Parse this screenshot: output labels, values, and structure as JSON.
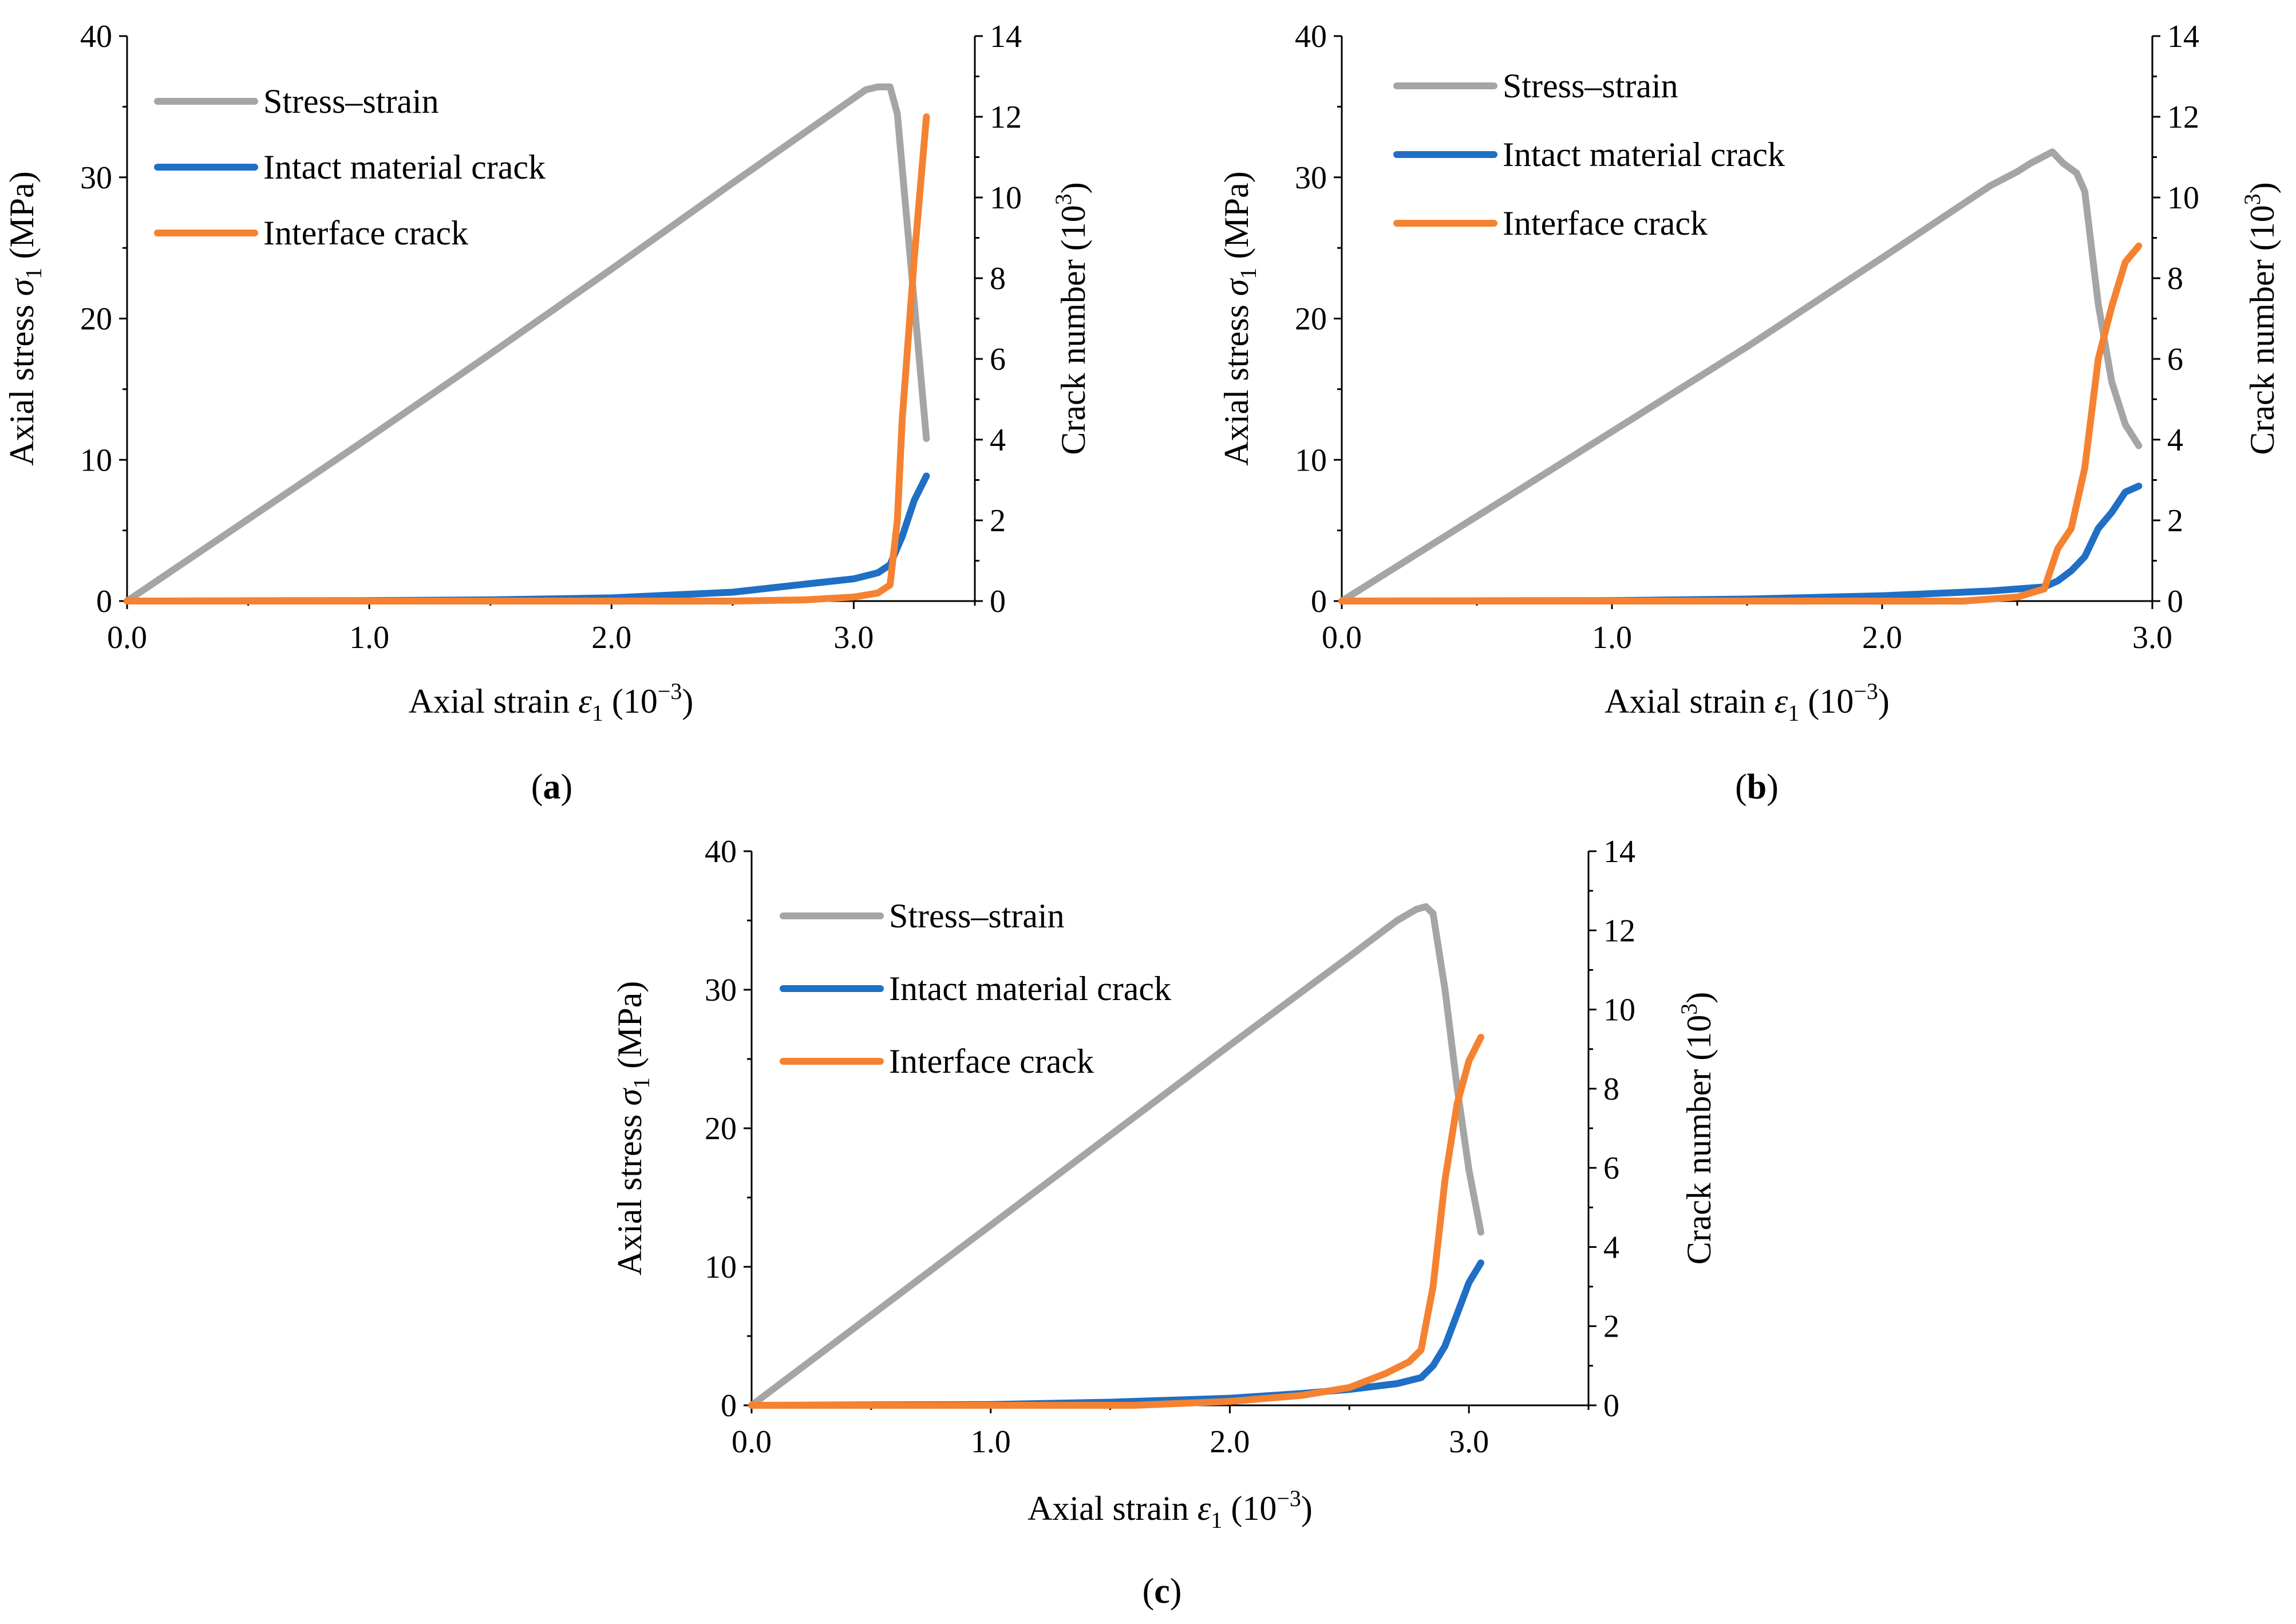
{
  "panels_meta": {
    "captions": [
      "a",
      "b",
      "c"
    ]
  },
  "chart_data": [
    {
      "type": "line",
      "caption": "a",
      "xlabel": "Axial strain ε1 (10−3)",
      "ylabel": "Axial stress σ1 (MPa)",
      "y2label": "Crack number (103)",
      "xlim": [
        0,
        3.5
      ],
      "ylim": [
        0,
        40
      ],
      "y2lim": [
        0,
        14
      ],
      "xticks": [
        "0.0",
        "1.0",
        "2.0",
        "3.0"
      ],
      "yticks": [
        "0",
        "10",
        "20",
        "30",
        "40"
      ],
      "y2ticks": [
        "0",
        "2",
        "4",
        "6",
        "8",
        "10",
        "12",
        "14"
      ],
      "legend": [
        "Stress–strain",
        "Intact material crack",
        "Interface crack"
      ],
      "colors": [
        "#a5a5a5",
        "#1f6fc5",
        "#f58231"
      ],
      "series": [
        {
          "name": "Stress–strain",
          "axis": "left",
          "x": [
            0,
            0.5,
            1.0,
            1.5,
            2.0,
            2.5,
            2.8,
            3.0,
            3.05,
            3.1,
            3.15,
            3.18,
            3.3
          ],
          "y": [
            0,
            5.8,
            11.6,
            17.5,
            23.5,
            29.6,
            33.2,
            35.6,
            36.2,
            36.4,
            36.4,
            34.5,
            11.5
          ]
        },
        {
          "name": "Intact material crack",
          "axis": "right",
          "x": [
            0,
            1.0,
            1.5,
            2.0,
            2.5,
            2.8,
            3.0,
            3.1,
            3.15,
            3.2,
            3.25,
            3.3
          ],
          "y": [
            0,
            0.01,
            0.03,
            0.08,
            0.22,
            0.42,
            0.55,
            0.7,
            0.9,
            1.6,
            2.5,
            3.1
          ]
        },
        {
          "name": "Interface crack",
          "axis": "right",
          "x": [
            0,
            2.5,
            2.8,
            3.0,
            3.1,
            3.15,
            3.18,
            3.2,
            3.25,
            3.3
          ],
          "y": [
            0,
            0,
            0.03,
            0.1,
            0.2,
            0.4,
            2.0,
            4.5,
            8.5,
            12.0
          ]
        }
      ]
    },
    {
      "type": "line",
      "caption": "b",
      "xlabel": "Axial strain ε1 (10−3)",
      "ylabel": "Axial stress σ1 (MPa)",
      "y2label": "Crack number (103)",
      "xlim": [
        0,
        3.0
      ],
      "ylim": [
        0,
        40
      ],
      "y2lim": [
        0,
        14
      ],
      "xticks": [
        "0.0",
        "1.0",
        "2.0",
        "3.0"
      ],
      "yticks": [
        "0",
        "10",
        "20",
        "30",
        "40"
      ],
      "y2ticks": [
        "0",
        "2",
        "4",
        "6",
        "8",
        "10",
        "12",
        "14"
      ],
      "legend": [
        "Stress–strain",
        "Intact material crack",
        "Interface crack"
      ],
      "colors": [
        "#a5a5a5",
        "#1f6fc5",
        "#f58231"
      ],
      "series": [
        {
          "name": "Stress–strain",
          "axis": "left",
          "x": [
            0,
            0.5,
            1.0,
            1.5,
            2.0,
            2.4,
            2.5,
            2.55,
            2.6,
            2.63,
            2.67,
            2.72,
            2.75,
            2.8,
            2.85,
            2.9,
            2.95
          ],
          "y": [
            0,
            6.0,
            12.0,
            18.0,
            24.3,
            29.4,
            30.4,
            31.0,
            31.5,
            31.8,
            31.0,
            30.3,
            29.0,
            21.0,
            15.5,
            12.5,
            11.0
          ]
        },
        {
          "name": "Intact material crack",
          "axis": "right",
          "x": [
            0,
            1.0,
            1.5,
            2.0,
            2.4,
            2.6,
            2.65,
            2.7,
            2.75,
            2.8,
            2.85,
            2.9,
            2.95
          ],
          "y": [
            0,
            0.01,
            0.05,
            0.13,
            0.25,
            0.35,
            0.5,
            0.75,
            1.1,
            1.8,
            2.2,
            2.7,
            2.85
          ]
        },
        {
          "name": "Interface crack",
          "axis": "right",
          "x": [
            0,
            2.3,
            2.5,
            2.6,
            2.65,
            2.7,
            2.75,
            2.8,
            2.85,
            2.9,
            2.95
          ],
          "y": [
            0,
            0,
            0.1,
            0.3,
            1.3,
            1.8,
            3.3,
            6.0,
            7.3,
            8.4,
            8.8
          ]
        }
      ]
    },
    {
      "type": "line",
      "caption": "c",
      "xlabel": "Axial strain ε1 (10−3)",
      "ylabel": "Axial stress σ1 (MPa)",
      "y2label": "Crack number (103)",
      "xlim": [
        0,
        3.5
      ],
      "ylim": [
        0,
        40
      ],
      "y2lim": [
        0,
        14
      ],
      "xticks": [
        "0.0",
        "1.0",
        "2.0",
        "3.0"
      ],
      "yticks": [
        "0",
        "10",
        "20",
        "30",
        "40"
      ],
      "y2ticks": [
        "0",
        "2",
        "4",
        "6",
        "8",
        "10",
        "12",
        "14"
      ],
      "legend": [
        "Stress–strain",
        "Intact material crack",
        "Interface crack"
      ],
      "colors": [
        "#a5a5a5",
        "#1f6fc5",
        "#f58231"
      ],
      "series": [
        {
          "name": "Stress–strain",
          "axis": "left",
          "x": [
            0,
            0.5,
            1.0,
            1.5,
            2.0,
            2.5,
            2.7,
            2.78,
            2.82,
            2.85,
            2.9,
            2.95,
            3.0,
            3.05
          ],
          "y": [
            0,
            6.5,
            13.0,
            19.5,
            26.0,
            32.4,
            35.0,
            35.8,
            36.0,
            35.5,
            30.0,
            23.0,
            17.0,
            12.5
          ]
        },
        {
          "name": "Intact material crack",
          "axis": "right",
          "x": [
            0,
            1.0,
            1.5,
            2.0,
            2.3,
            2.5,
            2.7,
            2.8,
            2.85,
            2.9,
            2.95,
            3.0,
            3.05
          ],
          "y": [
            0,
            0.02,
            0.08,
            0.18,
            0.3,
            0.4,
            0.55,
            0.7,
            1.0,
            1.5,
            2.3,
            3.1,
            3.6
          ]
        },
        {
          "name": "Interface crack",
          "axis": "right",
          "x": [
            0,
            1.6,
            2.0,
            2.3,
            2.5,
            2.65,
            2.75,
            2.8,
            2.85,
            2.9,
            2.95,
            3.0,
            3.05
          ],
          "y": [
            0,
            0,
            0.1,
            0.25,
            0.45,
            0.8,
            1.1,
            1.4,
            3.0,
            5.7,
            7.6,
            8.7,
            9.3
          ]
        }
      ]
    }
  ]
}
